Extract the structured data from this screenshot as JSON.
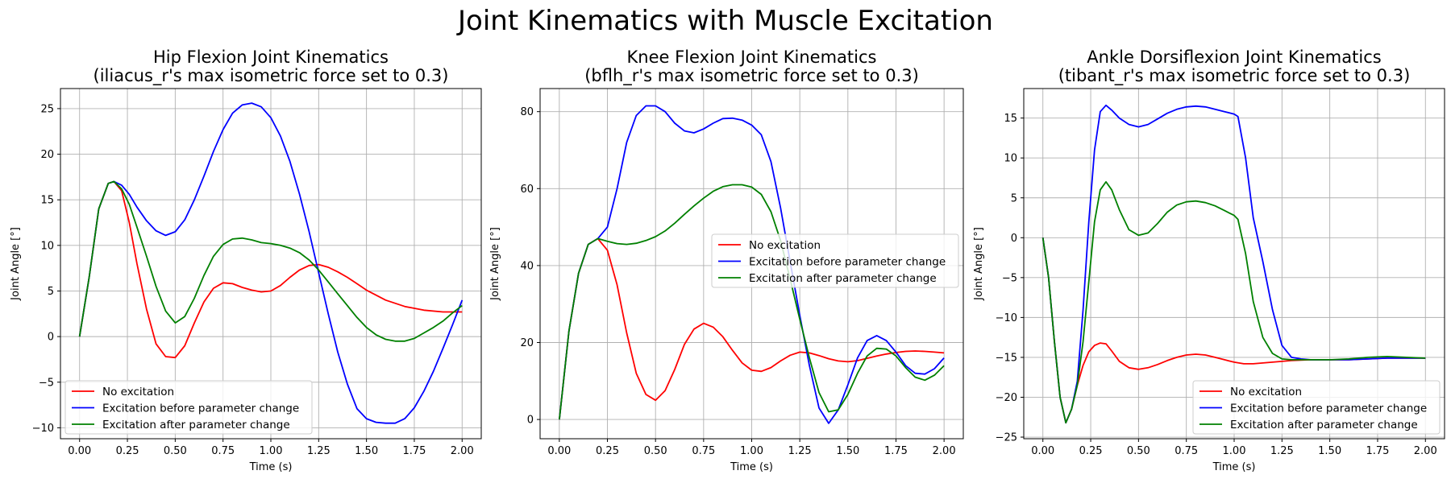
{
  "suptitle": "Joint Kinematics with Muscle Excitation",
  "colors": {
    "no_excitation": "#ff0000",
    "before_change": "#0000ff",
    "after_change": "#008000"
  },
  "chart_data": [
    {
      "type": "line",
      "title": "Hip Flexion Joint Kinematics\n(iliacus_r's max isometric force set to 0.3)",
      "xlabel": "Time (s)",
      "ylabel": "Joint Angle [°]",
      "xlim": [
        -0.1,
        2.1
      ],
      "ylim": [
        -11.2,
        27.2
      ],
      "xticks": [
        0,
        0.25,
        0.5,
        0.75,
        1.0,
        1.25,
        1.5,
        1.75,
        2.0
      ],
      "xtick_labels": [
        "0.00",
        "0.25",
        "0.50",
        "0.75",
        "1.00",
        "1.25",
        "1.50",
        "1.75",
        "2.00"
      ],
      "yticks": [
        -10,
        -5,
        0,
        5,
        10,
        15,
        20,
        25
      ],
      "ytick_labels": [
        "−10",
        "−5",
        "0",
        "5",
        "10",
        "15",
        "20",
        "25"
      ],
      "grid": true,
      "legend": "lower-left",
      "series": [
        {
          "name": "No excitation",
          "color": "#ff0000",
          "x": [
            0,
            0.05,
            0.1,
            0.15,
            0.18,
            0.22,
            0.26,
            0.3,
            0.35,
            0.4,
            0.45,
            0.5,
            0.55,
            0.6,
            0.65,
            0.7,
            0.75,
            0.8,
            0.85,
            0.9,
            0.95,
            1.0,
            1.05,
            1.1,
            1.15,
            1.2,
            1.25,
            1.3,
            1.35,
            1.4,
            1.45,
            1.5,
            1.6,
            1.7,
            1.8,
            1.9,
            2.0
          ],
          "y": [
            0,
            6.5,
            14,
            16.8,
            17,
            16,
            12.5,
            8,
            3,
            -0.8,
            -2.2,
            -2.3,
            -1,
            1.5,
            3.8,
            5.3,
            5.9,
            5.8,
            5.4,
            5.1,
            4.9,
            5.0,
            5.6,
            6.5,
            7.3,
            7.8,
            7.9,
            7.6,
            7.1,
            6.5,
            5.8,
            5.1,
            4.0,
            3.3,
            2.9,
            2.7,
            2.7
          ]
        },
        {
          "name": "Excitation before parameter change",
          "color": "#0000ff",
          "x": [
            0,
            0.05,
            0.1,
            0.15,
            0.18,
            0.22,
            0.26,
            0.3,
            0.35,
            0.4,
            0.45,
            0.5,
            0.55,
            0.6,
            0.65,
            0.7,
            0.75,
            0.8,
            0.85,
            0.9,
            0.95,
            1.0,
            1.05,
            1.1,
            1.15,
            1.2,
            1.25,
            1.3,
            1.35,
            1.4,
            1.45,
            1.5,
            1.55,
            1.6,
            1.65,
            1.7,
            1.75,
            1.8,
            1.85,
            1.9,
            1.95,
            2.0
          ],
          "y": [
            0,
            6.5,
            14,
            16.8,
            17,
            16.6,
            15.6,
            14.2,
            12.7,
            11.6,
            11.1,
            11.5,
            12.8,
            15,
            17.6,
            20.3,
            22.7,
            24.5,
            25.4,
            25.6,
            25.2,
            24.0,
            22.0,
            19.2,
            15.6,
            11.5,
            7.0,
            2.5,
            -1.7,
            -5.2,
            -7.9,
            -9.0,
            -9.4,
            -9.5,
            -9.5,
            -9.0,
            -7.8,
            -6.0,
            -3.8,
            -1.3,
            1.3,
            4.0
          ]
        },
        {
          "name": "Excitation after parameter change",
          "color": "#008000",
          "x": [
            0,
            0.05,
            0.1,
            0.15,
            0.18,
            0.22,
            0.26,
            0.3,
            0.35,
            0.4,
            0.45,
            0.5,
            0.55,
            0.6,
            0.65,
            0.7,
            0.75,
            0.8,
            0.85,
            0.9,
            0.95,
            1.0,
            1.05,
            1.1,
            1.15,
            1.2,
            1.25,
            1.3,
            1.35,
            1.4,
            1.45,
            1.5,
            1.55,
            1.6,
            1.65,
            1.7,
            1.75,
            1.8,
            1.85,
            1.9,
            1.95,
            2.0
          ],
          "y": [
            0,
            6.5,
            14,
            16.8,
            17,
            16.2,
            14.5,
            12,
            8.8,
            5.5,
            2.8,
            1.5,
            2.2,
            4.2,
            6.7,
            8.8,
            10.1,
            10.7,
            10.8,
            10.6,
            10.3,
            10.2,
            10.0,
            9.7,
            9.2,
            8.4,
            7.3,
            6.0,
            4.7,
            3.4,
            2.1,
            1.0,
            0.2,
            -0.3,
            -0.5,
            -0.5,
            -0.2,
            0.4,
            1.0,
            1.7,
            2.6,
            3.4
          ]
        }
      ]
    },
    {
      "type": "line",
      "title": "Knee Flexion Joint Kinematics\n(bflh_r's max isometric force set to 0.3)",
      "xlabel": "Time (s)",
      "ylabel": "Joint Angle [°]",
      "xlim": [
        -0.1,
        2.1
      ],
      "ylim": [
        -5,
        86
      ],
      "xticks": [
        0,
        0.25,
        0.5,
        0.75,
        1.0,
        1.25,
        1.5,
        1.75,
        2.0
      ],
      "xtick_labels": [
        "0.00",
        "0.25",
        "0.50",
        "0.75",
        "1.00",
        "1.25",
        "1.50",
        "1.75",
        "2.00"
      ],
      "yticks": [
        0,
        20,
        40,
        60,
        80
      ],
      "ytick_labels": [
        "0",
        "20",
        "40",
        "60",
        "80"
      ],
      "grid": true,
      "legend": "center-right",
      "series": [
        {
          "name": "No excitation",
          "color": "#ff0000",
          "x": [
            0,
            0.05,
            0.1,
            0.15,
            0.2,
            0.25,
            0.3,
            0.35,
            0.4,
            0.45,
            0.5,
            0.55,
            0.6,
            0.65,
            0.7,
            0.75,
            0.8,
            0.85,
            0.9,
            0.95,
            1.0,
            1.05,
            1.1,
            1.15,
            1.2,
            1.25,
            1.3,
            1.35,
            1.4,
            1.45,
            1.5,
            1.55,
            1.6,
            1.65,
            1.7,
            1.75,
            1.8,
            1.85,
            1.9,
            1.95,
            2.0
          ],
          "y": [
            0,
            23,
            38,
            45.5,
            47,
            44,
            35,
            22.5,
            12,
            6.5,
            5,
            7.5,
            13,
            19.5,
            23.5,
            25,
            24,
            21.5,
            18,
            14.7,
            12.8,
            12.5,
            13.5,
            15.2,
            16.7,
            17.5,
            17.3,
            16.6,
            15.8,
            15.2,
            15,
            15.3,
            15.9,
            16.5,
            17,
            17.4,
            17.7,
            17.8,
            17.7,
            17.5,
            17.3
          ]
        },
        {
          "name": "Excitation before parameter change",
          "color": "#0000ff",
          "x": [
            0,
            0.05,
            0.1,
            0.15,
            0.2,
            0.25,
            0.3,
            0.35,
            0.4,
            0.45,
            0.5,
            0.55,
            0.6,
            0.65,
            0.7,
            0.75,
            0.8,
            0.85,
            0.9,
            0.95,
            1.0,
            1.05,
            1.1,
            1.15,
            1.2,
            1.25,
            1.3,
            1.35,
            1.4,
            1.45,
            1.5,
            1.55,
            1.6,
            1.65,
            1.7,
            1.75,
            1.8,
            1.85,
            1.9,
            1.95,
            2.0
          ],
          "y": [
            0,
            23,
            38,
            45.5,
            47,
            50,
            60,
            72,
            79,
            81.5,
            81.5,
            80,
            77,
            75,
            74.5,
            75.5,
            77,
            78.2,
            78.3,
            77.8,
            76.5,
            74,
            67,
            55,
            41,
            27,
            14,
            3,
            -1,
            2.5,
            9,
            16,
            20.5,
            21.8,
            20.5,
            17.5,
            14,
            12,
            11.8,
            13.2,
            16
          ]
        },
        {
          "name": "Excitation after parameter change",
          "color": "#008000",
          "x": [
            0,
            0.05,
            0.1,
            0.15,
            0.2,
            0.25,
            0.3,
            0.35,
            0.4,
            0.45,
            0.5,
            0.55,
            0.6,
            0.65,
            0.7,
            0.75,
            0.8,
            0.85,
            0.9,
            0.95,
            1.0,
            1.05,
            1.1,
            1.15,
            1.2,
            1.25,
            1.3,
            1.35,
            1.4,
            1.45,
            1.5,
            1.55,
            1.6,
            1.65,
            1.7,
            1.75,
            1.8,
            1.85,
            1.9,
            1.95,
            2.0
          ],
          "y": [
            0,
            23,
            38,
            45.5,
            47,
            46.3,
            45.7,
            45.5,
            45.8,
            46.5,
            47.5,
            49,
            51,
            53.3,
            55.5,
            57.5,
            59.3,
            60.5,
            61,
            61,
            60.4,
            58.5,
            54,
            46.5,
            36.5,
            26,
            16,
            7,
            2,
            2.5,
            6.5,
            12,
            16.5,
            18.5,
            18.3,
            16.5,
            13.5,
            11,
            10.2,
            11.5,
            14
          ]
        }
      ]
    },
    {
      "type": "line",
      "title": "Ankle Dorsiflexion Joint Kinematics\n(tibant_r's max isometric force set to 0.3)",
      "xlabel": "Time (s)",
      "ylabel": "Joint Angle [°]",
      "xlim": [
        -0.1,
        2.1
      ],
      "ylim": [
        -25.2,
        18.7
      ],
      "xticks": [
        0,
        0.25,
        0.5,
        0.75,
        1.0,
        1.25,
        1.5,
        1.75,
        2.0
      ],
      "xtick_labels": [
        "0.00",
        "0.25",
        "0.50",
        "0.75",
        "1.00",
        "1.25",
        "1.50",
        "1.75",
        "2.00"
      ],
      "yticks": [
        -25,
        -20,
        -15,
        -10,
        -5,
        0,
        5,
        10,
        15
      ],
      "ytick_labels": [
        "−25",
        "−20",
        "−15",
        "−10",
        "−5",
        "0",
        "5",
        "10",
        "15"
      ],
      "grid": true,
      "legend": "lower-right",
      "series": [
        {
          "name": "No excitation",
          "color": "#ff0000",
          "x": [
            0,
            0.03,
            0.06,
            0.09,
            0.12,
            0.15,
            0.18,
            0.21,
            0.24,
            0.27,
            0.3,
            0.33,
            0.36,
            0.4,
            0.45,
            0.5,
            0.55,
            0.6,
            0.65,
            0.7,
            0.75,
            0.8,
            0.85,
            0.9,
            0.95,
            1.0,
            1.05,
            1.1,
            1.15,
            1.2,
            1.3,
            1.4,
            1.5,
            1.6,
            1.7,
            1.8,
            1.9,
            2.0
          ],
          "y": [
            0,
            -5,
            -13,
            -20,
            -23.2,
            -21.5,
            -18.5,
            -16,
            -14.3,
            -13.5,
            -13.2,
            -13.3,
            -14.2,
            -15.5,
            -16.3,
            -16.5,
            -16.3,
            -15.9,
            -15.4,
            -15,
            -14.7,
            -14.6,
            -14.7,
            -15,
            -15.3,
            -15.6,
            -15.8,
            -15.8,
            -15.7,
            -15.6,
            -15.4,
            -15.3,
            -15.3,
            -15.3,
            -15.2,
            -15.1,
            -15.1,
            -15.1
          ]
        },
        {
          "name": "Excitation before parameter change",
          "color": "#0000ff",
          "x": [
            0,
            0.03,
            0.06,
            0.09,
            0.12,
            0.15,
            0.18,
            0.21,
            0.24,
            0.27,
            0.3,
            0.33,
            0.36,
            0.4,
            0.45,
            0.5,
            0.55,
            0.6,
            0.65,
            0.7,
            0.75,
            0.8,
            0.85,
            0.9,
            0.95,
            1.0,
            1.02,
            1.06,
            1.1,
            1.15,
            1.2,
            1.25,
            1.3,
            1.35,
            1.4,
            1.5,
            1.6,
            1.7,
            1.8,
            1.9,
            2.0
          ],
          "y": [
            0,
            -5,
            -13,
            -20,
            -23.2,
            -21.5,
            -18,
            -9,
            2,
            11,
            15.8,
            16.6,
            16,
            15,
            14.2,
            13.9,
            14.2,
            14.9,
            15.6,
            16.1,
            16.4,
            16.5,
            16.4,
            16.1,
            15.8,
            15.5,
            15.2,
            10,
            2.5,
            -3,
            -9,
            -13.5,
            -15,
            -15.2,
            -15.3,
            -15.3,
            -15.3,
            -15.2,
            -15.1,
            -15.1,
            -15.1
          ]
        },
        {
          "name": "Excitation after parameter change",
          "color": "#008000",
          "x": [
            0,
            0.03,
            0.06,
            0.09,
            0.12,
            0.15,
            0.18,
            0.21,
            0.24,
            0.27,
            0.3,
            0.33,
            0.36,
            0.4,
            0.45,
            0.5,
            0.55,
            0.6,
            0.65,
            0.7,
            0.75,
            0.8,
            0.85,
            0.9,
            0.95,
            1.0,
            1.02,
            1.06,
            1.1,
            1.15,
            1.2,
            1.25,
            1.3,
            1.35,
            1.4,
            1.5,
            1.6,
            1.7,
            1.8,
            1.9,
            2.0
          ],
          "y": [
            0,
            -5,
            -13,
            -20,
            -23.2,
            -21.5,
            -18.5,
            -13,
            -5.5,
            2,
            6,
            7,
            6,
            3.5,
            1,
            0.3,
            0.6,
            1.8,
            3.2,
            4.1,
            4.5,
            4.6,
            4.4,
            4.0,
            3.4,
            2.8,
            2.3,
            -2,
            -8,
            -12.5,
            -14.5,
            -15.2,
            -15.3,
            -15.3,
            -15.3,
            -15.3,
            -15.2,
            -15,
            -14.9,
            -15,
            -15.1
          ]
        }
      ]
    }
  ]
}
